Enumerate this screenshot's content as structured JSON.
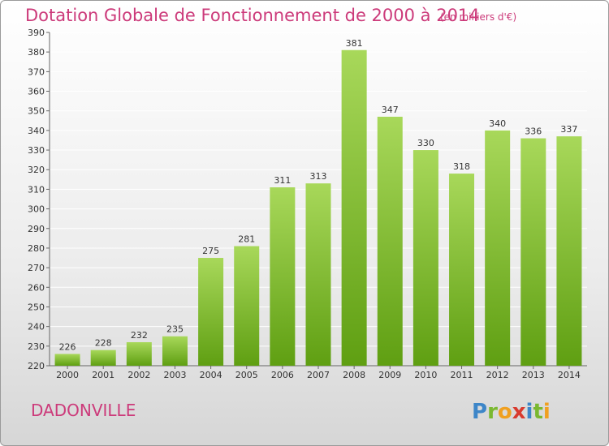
{
  "title": "Dotation Globale de Fonctionnement de 2000 à 2014",
  "unit_note": "(en milliers d'€)",
  "commune": "DADONVILLE",
  "logo": {
    "text": "Proxiti",
    "name": "proxiti-logo"
  },
  "colors": {
    "title": "#cc3a7a",
    "bar_top": "#a8d85a",
    "bar_bottom": "#5f9f12",
    "grid": "#ffffff",
    "axis_text": "#333333"
  },
  "chart_data": {
    "type": "bar",
    "title": "Dotation Globale de Fonctionnement de 2000 à 2014",
    "categories": [
      "2000",
      "2001",
      "2002",
      "2003",
      "2004",
      "2005",
      "2006",
      "2007",
      "2008",
      "2009",
      "2010",
      "2011",
      "2012",
      "2013",
      "2014"
    ],
    "values": [
      226,
      228,
      232,
      235,
      275,
      281,
      311,
      313,
      381,
      347,
      330,
      318,
      340,
      336,
      337
    ],
    "ylim": [
      220,
      390
    ],
    "ytick_step": 10,
    "xlabel": "",
    "ylabel": "",
    "grid": true
  }
}
